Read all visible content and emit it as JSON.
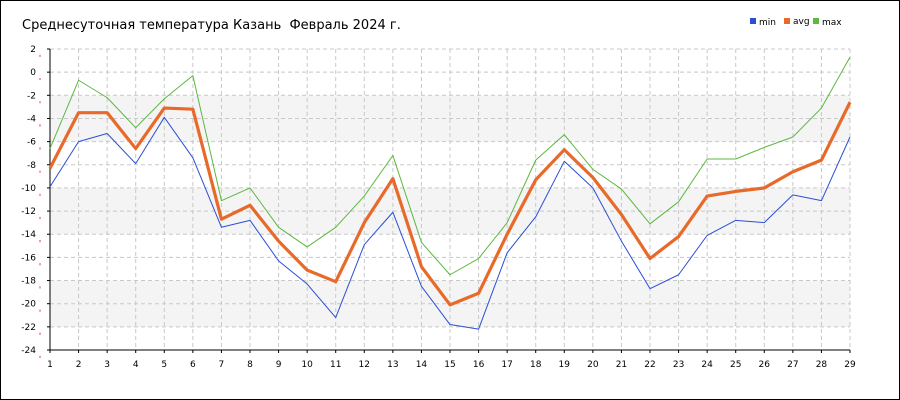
{
  "chart_data": {
    "type": "line",
    "title": "Среднесуточная температура Казань  Февраль 2024 г.",
    "xlabel": "",
    "ylabel": "",
    "x": [
      1,
      2,
      3,
      4,
      5,
      6,
      7,
      8,
      9,
      10,
      11,
      12,
      13,
      14,
      15,
      16,
      17,
      18,
      19,
      20,
      21,
      22,
      23,
      24,
      25,
      26,
      27,
      28,
      29
    ],
    "ylim": [
      -24,
      2
    ],
    "yticks": [
      2,
      0,
      -2,
      -4,
      -6,
      -8,
      -10,
      -12,
      -14,
      -16,
      -18,
      -20,
      -22,
      -24
    ],
    "grid": true,
    "legend_position": "top-right",
    "series": [
      {
        "name": "min",
        "color": "#2a4fd6",
        "values": [
          -9.9,
          -6.0,
          -5.3,
          -7.9,
          -3.9,
          -7.4,
          -13.4,
          -12.8,
          -16.3,
          -18.3,
          -21.2,
          -14.9,
          -12.1,
          -18.5,
          -21.8,
          -22.2,
          -15.6,
          -12.5,
          -7.7,
          -10.0,
          -14.6,
          -18.7,
          -17.5,
          -14.1,
          -12.8,
          -13.0,
          -10.6,
          -11.1,
          -5.6
        ]
      },
      {
        "name": "avg",
        "color": "#e86a2a",
        "values": [
          -8.3,
          -3.5,
          -3.5,
          -6.6,
          -3.1,
          -3.2,
          -12.7,
          -11.5,
          -14.6,
          -17.1,
          -18.1,
          -13.0,
          -9.2,
          -16.8,
          -20.1,
          -19.1,
          -14.0,
          -9.3,
          -6.7,
          -9.1,
          -12.3,
          -16.1,
          -14.2,
          -10.7,
          -10.3,
          -10.0,
          -8.6,
          -7.6,
          -2.6
        ]
      },
      {
        "name": "max",
        "color": "#5cb840",
        "values": [
          -6.6,
          -0.7,
          -2.2,
          -4.8,
          -2.3,
          -0.3,
          -11.1,
          -10.0,
          -13.4,
          -15.1,
          -13.4,
          -10.7,
          -7.2,
          -14.7,
          -17.5,
          -16.1,
          -13.0,
          -7.6,
          -5.4,
          -8.4,
          -10.1,
          -13.1,
          -11.2,
          -7.5,
          -7.5,
          -6.5,
          -5.6,
          -3.1,
          1.3
        ]
      }
    ]
  }
}
